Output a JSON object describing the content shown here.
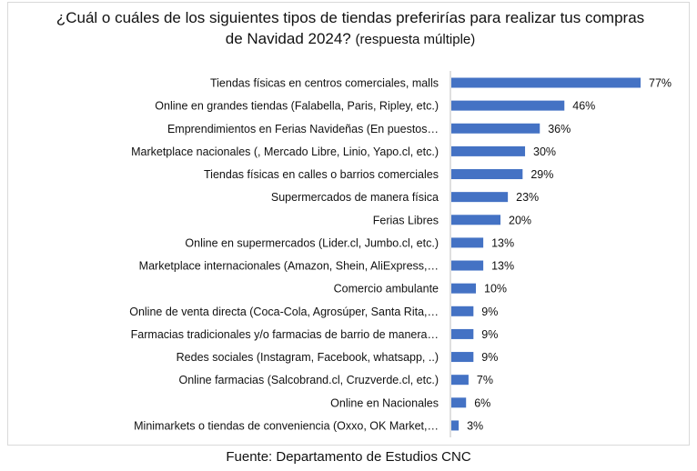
{
  "chart_data": {
    "type": "bar",
    "orientation": "horizontal",
    "title": "¿Cuál o cuáles de los siguientes tipos de tiendas preferirías para realizar tus compras de Navidad 2024?",
    "subtitle": "(respuesta múltiple)",
    "categories": [
      "Tiendas físicas en centros comerciales, malls",
      "Online en grandes tiendas (Falabella, Paris, Ripley, etc.)",
      "Emprendimientos en Ferias Navideñas (En puestos…",
      "Marketplace nacionales (, Mercado Libre, Linio, Yapo.cl, etc.)",
      "Tiendas físicas en calles o barrios comerciales",
      "Supermercados de manera física",
      "Ferias Libres",
      "Online en supermercados (Lider.cl, Jumbo.cl, etc.)",
      "Marketplace internacionales (Amazon, Shein, AliExpress,…",
      "Comercio ambulante",
      "Online de venta directa (Coca-Cola, Agrosúper, Santa Rita,…",
      "Farmacias tradicionales y/o farmacias de barrio de manera…",
      "Redes sociales (Instagram, Facebook, whatsapp, ..)",
      "Online farmacias (Salcobrand.cl, Cruzverde.cl, etc.)",
      "Online en Nacionales",
      "Minimarkets o tiendas de conveniencia (Oxxo, OK Market,…"
    ],
    "values": [
      77,
      46,
      36,
      30,
      29,
      23,
      20,
      13,
      13,
      10,
      9,
      9,
      9,
      7,
      6,
      3
    ],
    "value_labels": [
      "77%",
      "46%",
      "36%",
      "30%",
      "29%",
      "23%",
      "20%",
      "13%",
      "13%",
      "10%",
      "9%",
      "9%",
      "9%",
      "7%",
      "6%",
      "3%"
    ],
    "unit": "%",
    "xlim": [
      0,
      100
    ],
    "grid": false,
    "legend": "none",
    "bar_color": "#4472c4"
  },
  "footer": {
    "source": "Fuente: Departamento  de Estudios CNC"
  }
}
